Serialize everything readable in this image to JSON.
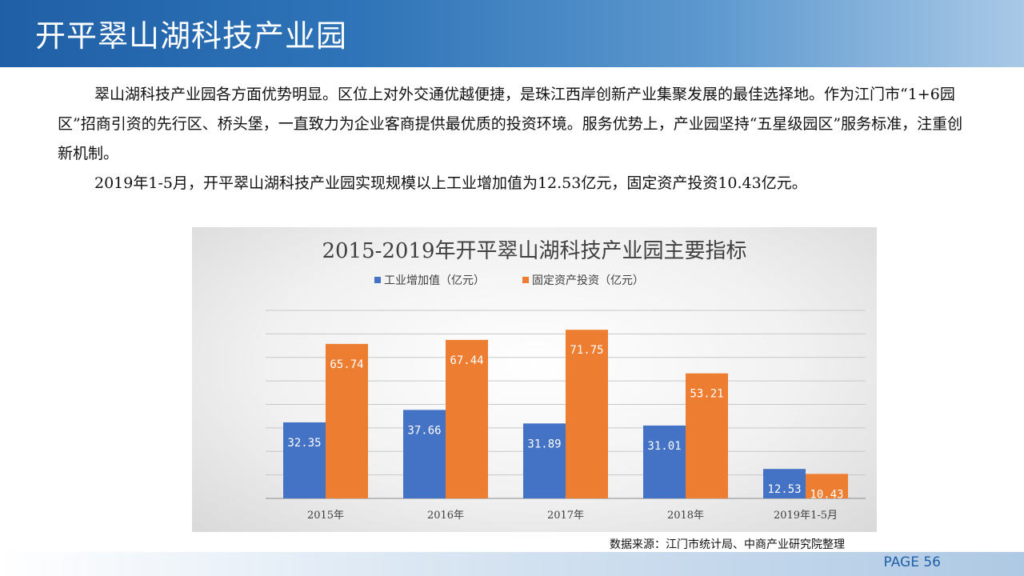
{
  "header": {
    "title": "开平翠山湖科技产业园"
  },
  "body": {
    "paragraphs": [
      "翠山湖科技产业园各方面优势明显。区位上对外交通优越便捷，是珠江西岸创新产业集聚发展的最佳选择地。作为江门市“1+6园区”招商引资的先行区、桥头堡，一直致力为企业客商提供最优质的投资环境。服务优势上，产业园坚持“五星级园区”服务标准，注重创新机制。",
      "2019年1-5月，开平翠山湖科技产业园实现规模以上工业增加值为12.53亿元，固定资产投资10.43亿元。"
    ]
  },
  "chart_data": {
    "type": "bar",
    "title": "2015-2019年开平翠山湖科技产业园主要指标",
    "categories": [
      "2015年",
      "2016年",
      "2017年",
      "2018年",
      "2019年1-5月"
    ],
    "series": [
      {
        "name": "工业增加值（亿元）",
        "color": "#4472c4",
        "values": [
          32.35,
          37.66,
          31.89,
          31.01,
          12.53
        ]
      },
      {
        "name": "固定资产投资（亿元）",
        "color": "#ed7d31",
        "values": [
          65.74,
          67.44,
          71.75,
          53.21,
          10.43
        ]
      }
    ],
    "ylim": [
      0,
      80
    ],
    "grid": true,
    "legend": "top-center",
    "xlabel": "",
    "ylabel": ""
  },
  "source": "数据来源：江门市统计局、中商产业研究院整理",
  "page_label": "PAGE 56"
}
